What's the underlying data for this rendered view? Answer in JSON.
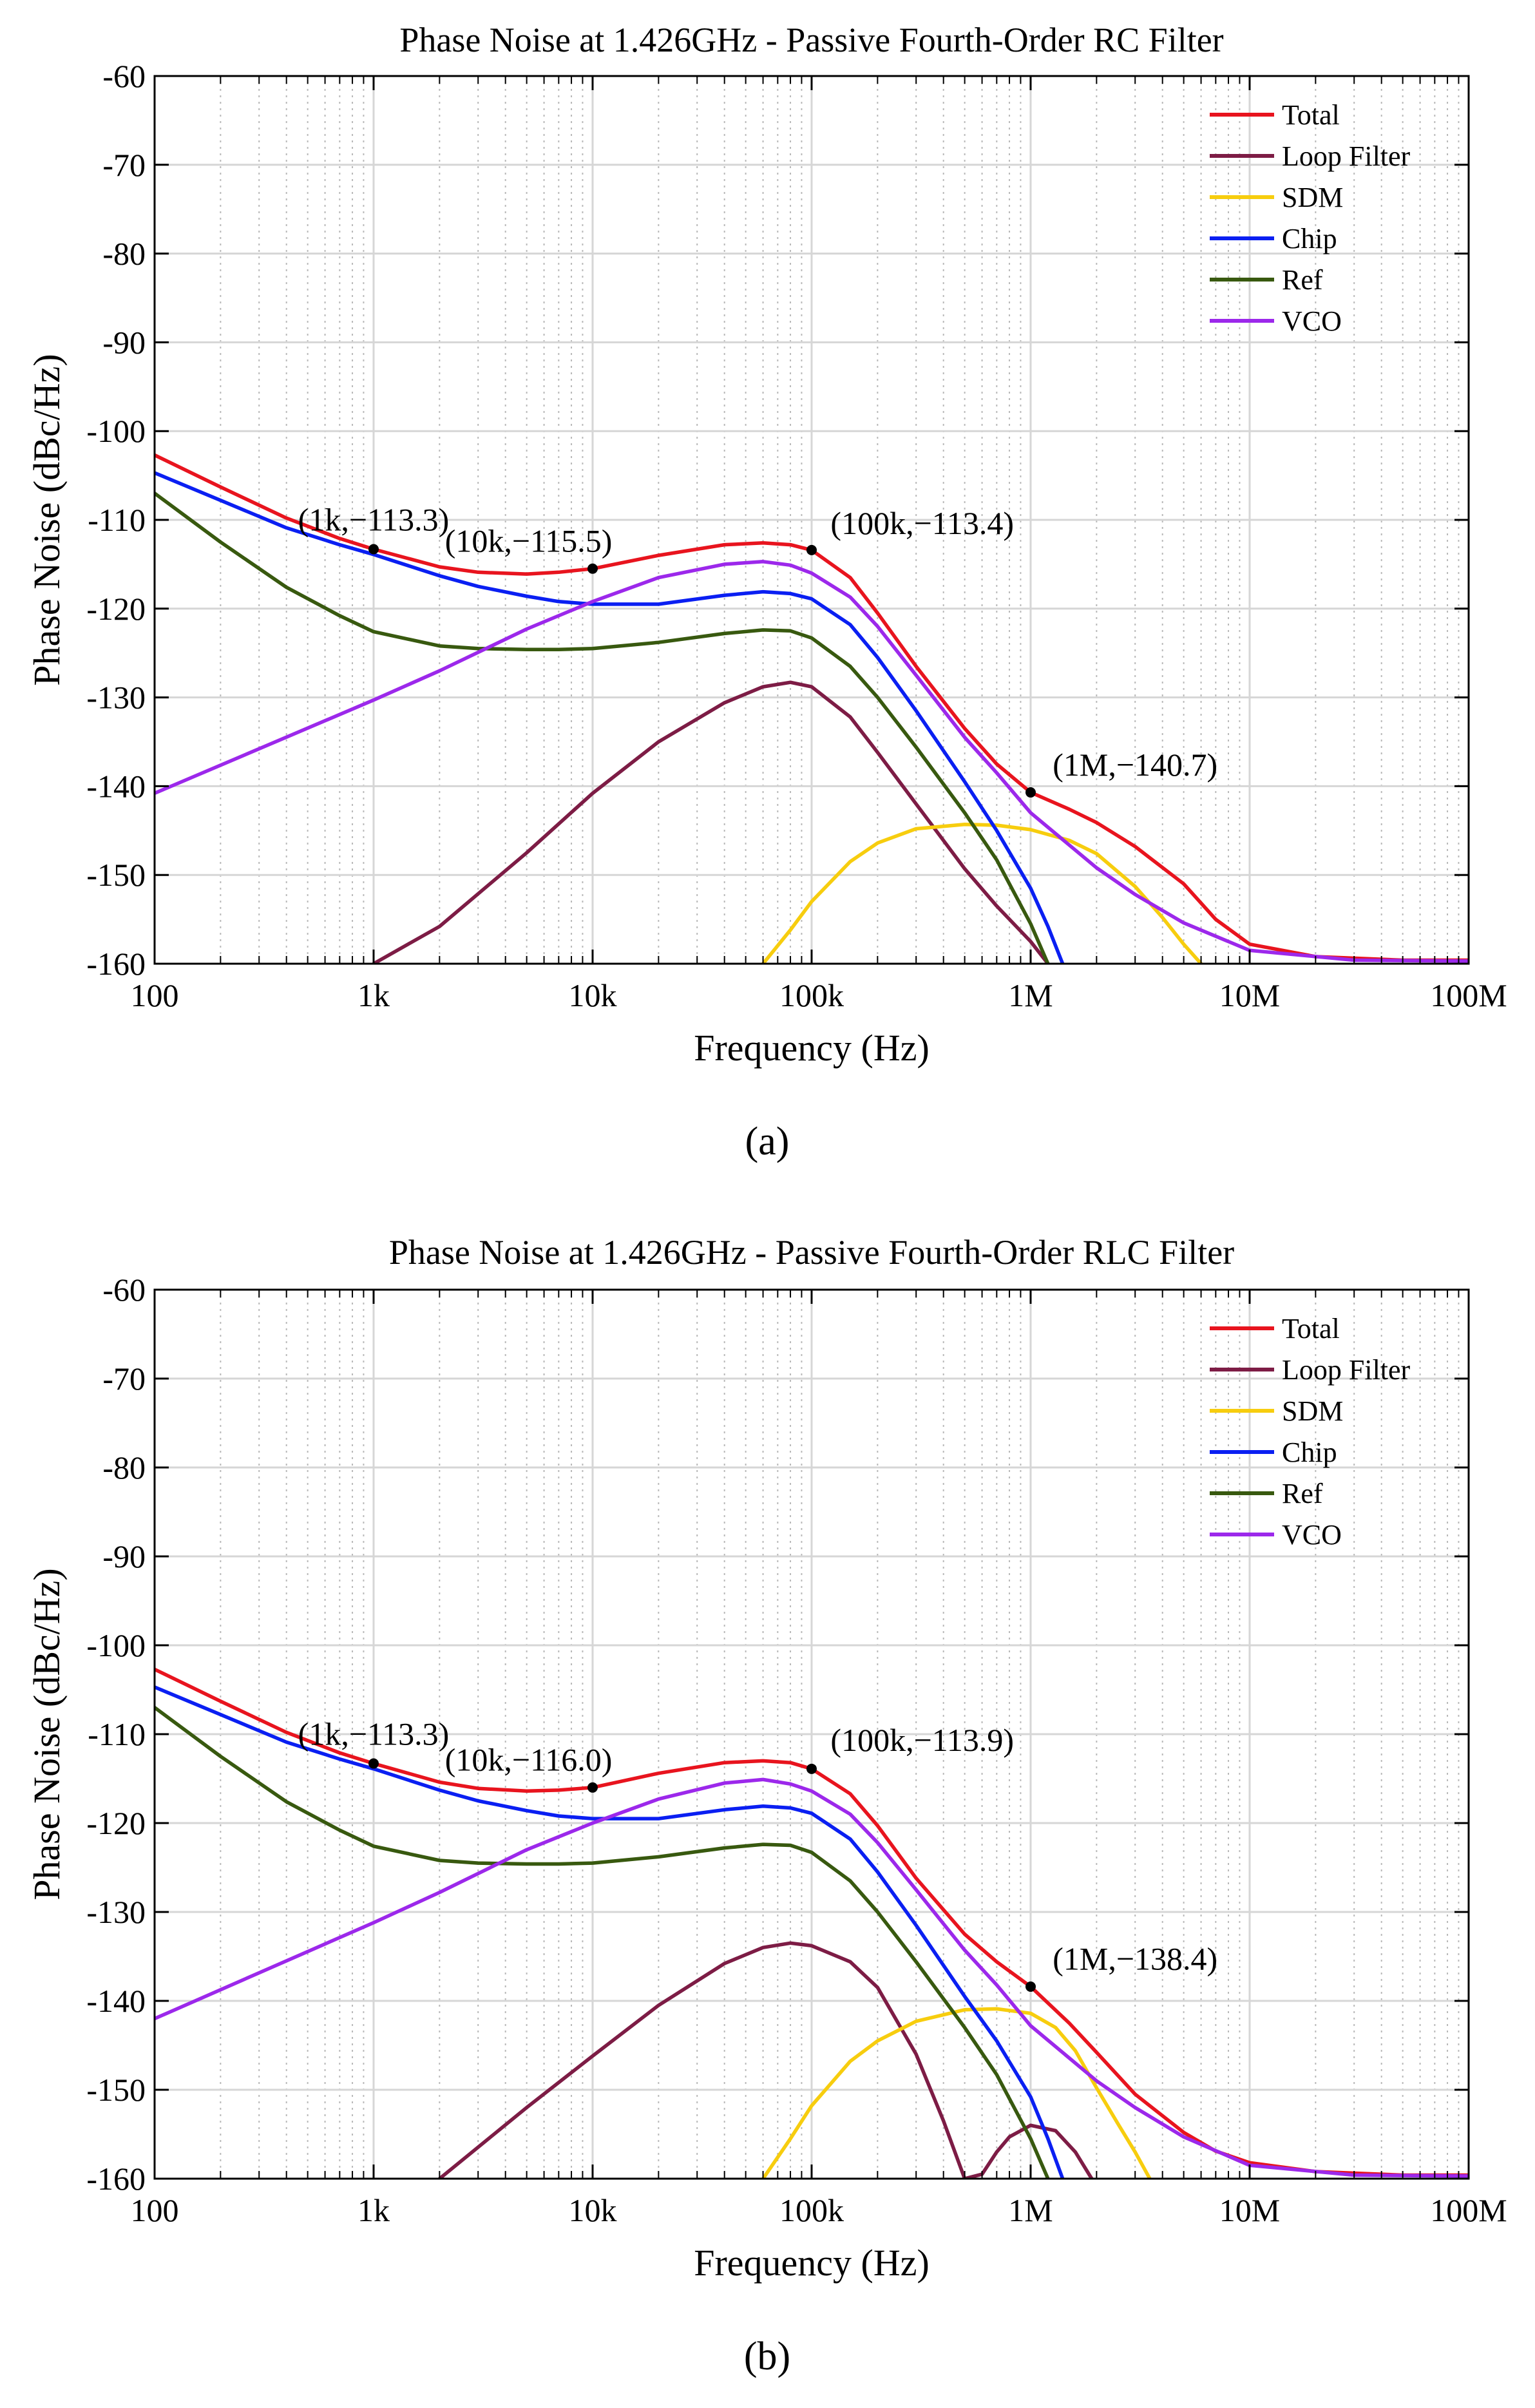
{
  "figure": {
    "captions": [
      "(a)",
      "(b)"
    ]
  },
  "colors": {
    "total": "#e8141e",
    "loop_filter": "#7d1c45",
    "sdm": "#f7cd0e",
    "chip": "#0a1ff2",
    "ref": "#38590f",
    "vco": "#9c28eb",
    "axis": "#000000",
    "grid": "#b8b8b8"
  },
  "chart_data": [
    {
      "type": "line",
      "title": "Phase Noise at 1.426GHz - Passive Fourth-Order RC Filter",
      "xlabel": "Frequency (Hz)",
      "ylabel": "Phase Noise (dBc/Hz)",
      "xscale": "log",
      "xlim": [
        100,
        100000000
      ],
      "ylim": [
        -160,
        -60
      ],
      "xticks": [
        100,
        1000,
        10000,
        100000,
        1000000,
        10000000,
        100000000
      ],
      "xtick_labels": [
        "100",
        "1k",
        "10k",
        "100k",
        "1M",
        "10M",
        "100M"
      ],
      "yticks": [
        -60,
        -70,
        -80,
        -90,
        -100,
        -110,
        -120,
        -130,
        -140,
        -150,
        -160
      ],
      "ytick_labels": [
        "-60",
        "-70",
        "-80",
        "-90",
        "-100",
        "-110",
        "-120",
        "-130",
        "-140",
        "-150",
        "-160"
      ],
      "grid": true,
      "legend_position": "top-right",
      "series": [
        {
          "name": "Total",
          "color_key": "total",
          "x": [
            100,
            200,
            400,
            700,
            1000,
            2000,
            3000,
            5000,
            7000,
            10000,
            20000,
            40000,
            60000,
            80000,
            100000,
            150000,
            200000,
            300000,
            500000,
            700000,
            1000000,
            1500000,
            2000000,
            3000000,
            5000000,
            7000000,
            10000000,
            20000000,
            50000000,
            100000000
          ],
          "y": [
            -102.7,
            -106.3,
            -109.8,
            -112.1,
            -113.3,
            -115.3,
            -115.9,
            -116.1,
            -115.9,
            -115.5,
            -114,
            -112.8,
            -112.6,
            -112.8,
            -113.4,
            -116.5,
            -120.5,
            -126.5,
            -133.5,
            -137.5,
            -140.7,
            -142.6,
            -144.1,
            -146.8,
            -151,
            -155,
            -157.8,
            -159.2,
            -159.6,
            -159.6
          ]
        },
        {
          "name": "Loop Filter",
          "color_key": "loop_filter",
          "x": [
            1000,
            2000,
            5000,
            10000,
            20000,
            40000,
            60000,
            80000,
            100000,
            150000,
            200000,
            300000,
            500000,
            700000,
            1000000,
            1200000
          ],
          "y": [
            -160,
            -155.8,
            -147.5,
            -140.8,
            -135,
            -130.6,
            -128.8,
            -128.3,
            -128.8,
            -132.2,
            -136.2,
            -142,
            -149.3,
            -153.5,
            -157.5,
            -160
          ]
        },
        {
          "name": "SDM",
          "color_key": "sdm",
          "x": [
            60000,
            80000,
            100000,
            150000,
            200000,
            300000,
            500000,
            700000,
            1000000,
            1500000,
            2000000,
            3000000,
            4000000,
            5000000,
            6000000
          ],
          "y": [
            -160,
            -156.2,
            -153,
            -148.5,
            -146.4,
            -144.8,
            -144.3,
            -144.4,
            -144.9,
            -146.1,
            -147.6,
            -151.3,
            -154.8,
            -157.8,
            -160
          ]
        },
        {
          "name": "Chip",
          "color_key": "chip",
          "x": [
            100,
            200,
            400,
            700,
            1000,
            2000,
            3000,
            5000,
            7000,
            10000,
            20000,
            40000,
            60000,
            80000,
            100000,
            150000,
            200000,
            300000,
            500000,
            700000,
            1000000,
            1200000,
            1400000
          ],
          "y": [
            -104.7,
            -107.8,
            -110.9,
            -112.8,
            -113.9,
            -116.3,
            -117.5,
            -118.6,
            -119.2,
            -119.5,
            -119.5,
            -118.5,
            -118.1,
            -118.3,
            -118.9,
            -121.8,
            -125.5,
            -131.5,
            -139.5,
            -145,
            -151.5,
            -155.8,
            -160
          ]
        },
        {
          "name": "Ref",
          "color_key": "ref",
          "x": [
            100,
            200,
            400,
            700,
            1000,
            2000,
            3000,
            5000,
            7000,
            10000,
            20000,
            40000,
            60000,
            80000,
            100000,
            150000,
            200000,
            300000,
            500000,
            700000,
            1000000,
            1200000
          ],
          "y": [
            -107,
            -112.5,
            -117.6,
            -120.8,
            -122.6,
            -124.2,
            -124.5,
            -124.6,
            -124.6,
            -124.5,
            -123.8,
            -122.8,
            -122.4,
            -122.5,
            -123.3,
            -126.5,
            -130,
            -135.6,
            -143,
            -148.3,
            -155.5,
            -160
          ]
        },
        {
          "name": "VCO",
          "color_key": "vco",
          "x": [
            100,
            1000,
            2000,
            5000,
            10000,
            20000,
            40000,
            60000,
            80000,
            100000,
            150000,
            200000,
            300000,
            500000,
            700000,
            1000000,
            2000000,
            3000000,
            5000000,
            10000000,
            30000000,
            100000000
          ],
          "y": [
            -140.8,
            -130.3,
            -127,
            -122.3,
            -119.2,
            -116.5,
            -115,
            -114.7,
            -115.1,
            -116,
            -118.7,
            -122,
            -127.5,
            -134.5,
            -138.5,
            -143,
            -149.2,
            -152.2,
            -155.4,
            -158.5,
            -159.6,
            -159.7
          ]
        }
      ],
      "annotations": [
        {
          "label": "(1k,−113.3)",
          "x": 1000,
          "y": -113.3,
          "label_x": 1000,
          "label_y": -111.2
        },
        {
          "label": "(10k,−115.5)",
          "x": 10000,
          "y": -115.5,
          "label_x": 5100,
          "label_y": -113.6
        },
        {
          "label": "(100k,−113.4)",
          "x": 100000,
          "y": -113.4,
          "label_x": 320000,
          "label_y": -111.6
        },
        {
          "label": "(1M,−140.7)",
          "x": 1000000,
          "y": -140.7,
          "label_x": 3000000,
          "label_y": -138.8
        }
      ]
    },
    {
      "type": "line",
      "title": "Phase Noise at 1.426GHz - Passive Fourth-Order RLC Filter",
      "xlabel": "Frequency (Hz)",
      "ylabel": "Phase Noise (dBc/Hz)",
      "xscale": "log",
      "xlim": [
        100,
        100000000
      ],
      "ylim": [
        -160,
        -60
      ],
      "xticks": [
        100,
        1000,
        10000,
        100000,
        1000000,
        10000000,
        100000000
      ],
      "xtick_labels": [
        "100",
        "1k",
        "10k",
        "100k",
        "1M",
        "10M",
        "100M"
      ],
      "yticks": [
        -60,
        -70,
        -80,
        -90,
        -100,
        -110,
        -120,
        -130,
        -140,
        -150,
        -160
      ],
      "ytick_labels": [
        "-60",
        "-70",
        "-80",
        "-90",
        "-100",
        "-110",
        "-120",
        "-130",
        "-140",
        "-150",
        "-160"
      ],
      "grid": true,
      "legend_position": "top-right",
      "series": [
        {
          "name": "Total",
          "color_key": "total",
          "x": [
            100,
            200,
            400,
            700,
            1000,
            2000,
            3000,
            5000,
            7000,
            10000,
            20000,
            40000,
            60000,
            80000,
            100000,
            150000,
            200000,
            300000,
            500000,
            700000,
            1000000,
            1500000,
            2000000,
            3000000,
            5000000,
            7000000,
            10000000,
            20000000,
            50000000,
            100000000
          ],
          "y": [
            -102.7,
            -106.3,
            -109.8,
            -112.1,
            -113.3,
            -115.4,
            -116.1,
            -116.4,
            -116.3,
            -116,
            -114.4,
            -113.2,
            -113,
            -113.2,
            -113.9,
            -116.7,
            -120.3,
            -126.2,
            -132.5,
            -135.6,
            -138.4,
            -142.5,
            -145.8,
            -150.5,
            -154.8,
            -156.9,
            -158.2,
            -159.2,
            -159.6,
            -159.6
          ]
        },
        {
          "name": "Loop Filter",
          "color_key": "loop_filter",
          "x": [
            2000,
            5000,
            10000,
            20000,
            40000,
            60000,
            80000,
            100000,
            150000,
            200000,
            300000,
            400000,
            500000,
            600000,
            700000,
            800000,
            1000000,
            1300000,
            1600000,
            1900000
          ],
          "y": [
            -160,
            -152,
            -146.2,
            -140.5,
            -135.8,
            -134,
            -133.5,
            -133.8,
            -135.6,
            -138.5,
            -146,
            -153.5,
            -160,
            -159.5,
            -157,
            -155.3,
            -154,
            -154.6,
            -157,
            -160
          ]
        },
        {
          "name": "SDM",
          "color_key": "sdm",
          "x": [
            60000,
            80000,
            100000,
            150000,
            200000,
            300000,
            500000,
            700000,
            1000000,
            1300000,
            1600000,
            2000000,
            2500000,
            3000000,
            3500000
          ],
          "y": [
            -160,
            -155.5,
            -151.8,
            -146.8,
            -144.5,
            -142.3,
            -141,
            -140.9,
            -141.4,
            -143,
            -145.6,
            -149.8,
            -153.8,
            -157,
            -160
          ]
        },
        {
          "name": "Chip",
          "color_key": "chip",
          "x": [
            100,
            200,
            400,
            700,
            1000,
            2000,
            3000,
            5000,
            7000,
            10000,
            20000,
            40000,
            60000,
            80000,
            100000,
            150000,
            200000,
            300000,
            500000,
            700000,
            1000000,
            1200000,
            1400000
          ],
          "y": [
            -104.7,
            -107.8,
            -110.9,
            -112.8,
            -113.9,
            -116.3,
            -117.5,
            -118.6,
            -119.2,
            -119.5,
            -119.5,
            -118.5,
            -118.1,
            -118.3,
            -118.9,
            -121.8,
            -125.5,
            -131.5,
            -139.5,
            -144.5,
            -150.8,
            -155.5,
            -160
          ]
        },
        {
          "name": "Ref",
          "color_key": "ref",
          "x": [
            100,
            200,
            400,
            700,
            1000,
            2000,
            3000,
            5000,
            7000,
            10000,
            20000,
            40000,
            60000,
            80000,
            100000,
            150000,
            200000,
            300000,
            500000,
            700000,
            1000000,
            1200000
          ],
          "y": [
            -107,
            -112.5,
            -117.6,
            -120.8,
            -122.6,
            -124.2,
            -124.5,
            -124.6,
            -124.6,
            -124.5,
            -123.8,
            -122.8,
            -122.4,
            -122.5,
            -123.3,
            -126.5,
            -130,
            -135.6,
            -143,
            -148.3,
            -155.5,
            -160
          ]
        },
        {
          "name": "VCO",
          "color_key": "vco",
          "x": [
            100,
            1000,
            2000,
            5000,
            10000,
            20000,
            40000,
            60000,
            80000,
            100000,
            150000,
            200000,
            300000,
            500000,
            700000,
            1000000,
            2000000,
            3000000,
            5000000,
            10000000,
            30000000,
            100000000
          ],
          "y": [
            -142,
            -131.2,
            -127.8,
            -123,
            -120,
            -117.3,
            -115.5,
            -115.1,
            -115.6,
            -116.4,
            -119,
            -122.2,
            -127.5,
            -134.3,
            -138.2,
            -142.8,
            -149,
            -152,
            -155.3,
            -158.5,
            -159.6,
            -159.7
          ]
        }
      ],
      "annotations": [
        {
          "label": "(1k,−113.3)",
          "x": 1000,
          "y": -113.3,
          "label_x": 1000,
          "label_y": -111.2
        },
        {
          "label": "(10k,−116.0)",
          "x": 10000,
          "y": -116,
          "label_x": 5100,
          "label_y": -114.1
        },
        {
          "label": "(100k,−113.9)",
          "x": 100000,
          "y": -113.9,
          "label_x": 320000,
          "label_y": -111.9
        },
        {
          "label": "(1M,−138.4)",
          "x": 1000000,
          "y": -138.4,
          "label_x": 3000000,
          "label_y": -136.5
        }
      ]
    }
  ]
}
